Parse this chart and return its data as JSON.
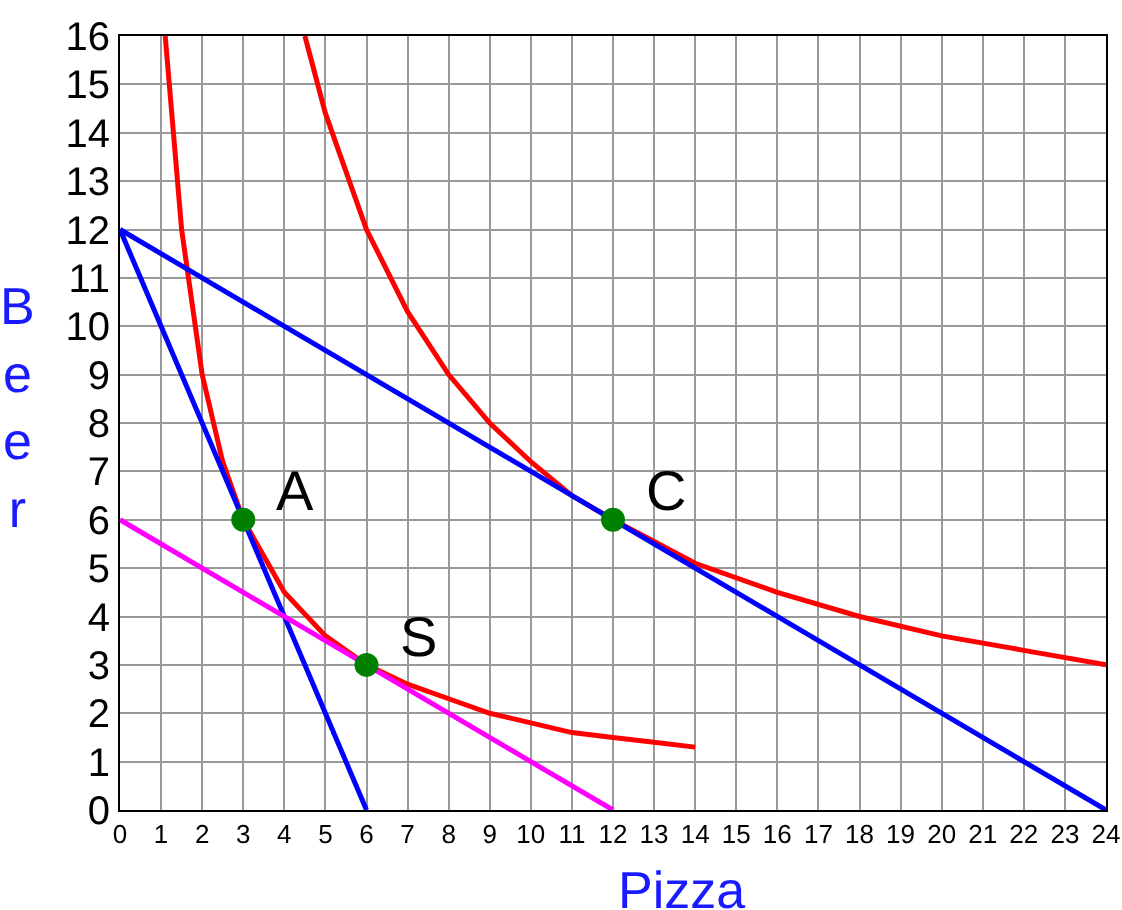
{
  "chart_data": {
    "type": "line",
    "xlabel": "Pizza",
    "ylabel": "Beer",
    "xlim": [
      0,
      24
    ],
    "xticks": [
      0,
      1,
      2,
      3,
      4,
      5,
      6,
      7,
      8,
      9,
      10,
      11,
      12,
      13,
      14,
      15,
      16,
      17,
      18,
      19,
      20,
      21,
      22,
      23,
      24
    ],
    "ylim": [
      0,
      16
    ],
    "yticks": [
      0,
      1,
      2,
      3,
      4,
      5,
      6,
      7,
      8,
      9,
      10,
      11,
      12,
      13,
      14,
      15,
      16
    ],
    "grid": true,
    "legend": false,
    "marker": "none",
    "series": [
      {
        "color": "#ff0000",
        "x": [
          1.1,
          1.5,
          2,
          2.5,
          3,
          4,
          5,
          6,
          7,
          8,
          9,
          10,
          11,
          12,
          13,
          14
        ],
        "values": [
          16,
          12,
          9,
          7.2,
          6,
          4.5,
          3.6,
          3,
          2.6,
          2.3,
          2,
          1.8,
          1.6,
          1.5,
          1.4,
          1.3
        ]
      },
      {
        "color": "#ff0000",
        "x": [
          4.5,
          5,
          6,
          7,
          8,
          9,
          10,
          11,
          12,
          14,
          16,
          18,
          20,
          22,
          24
        ],
        "values": [
          16,
          14.4,
          12,
          10.3,
          9,
          8,
          7.2,
          6.5,
          6,
          5.1,
          4.5,
          4,
          3.6,
          3.3,
          3
        ]
      },
      {
        "color": "#0000ff",
        "x": [
          0,
          6
        ],
        "values": [
          12,
          0
        ]
      },
      {
        "color": "#0000ff",
        "x": [
          0,
          24
        ],
        "values": [
          12,
          0
        ]
      },
      {
        "color": "#ff00ff",
        "x": [
          0,
          12
        ],
        "values": [
          6,
          0
        ]
      },
      {
        "type": "scatter",
        "marker": "circle",
        "color": "#008000",
        "x": [
          3,
          6,
          12
        ],
        "values": [
          6,
          3,
          6
        ]
      }
    ],
    "annotations": [
      {
        "text": "A",
        "x": 3,
        "y": 6
      },
      {
        "text": "S",
        "x": 6,
        "y": 3
      },
      {
        "text": "C",
        "x": 12,
        "y": 6
      }
    ]
  }
}
